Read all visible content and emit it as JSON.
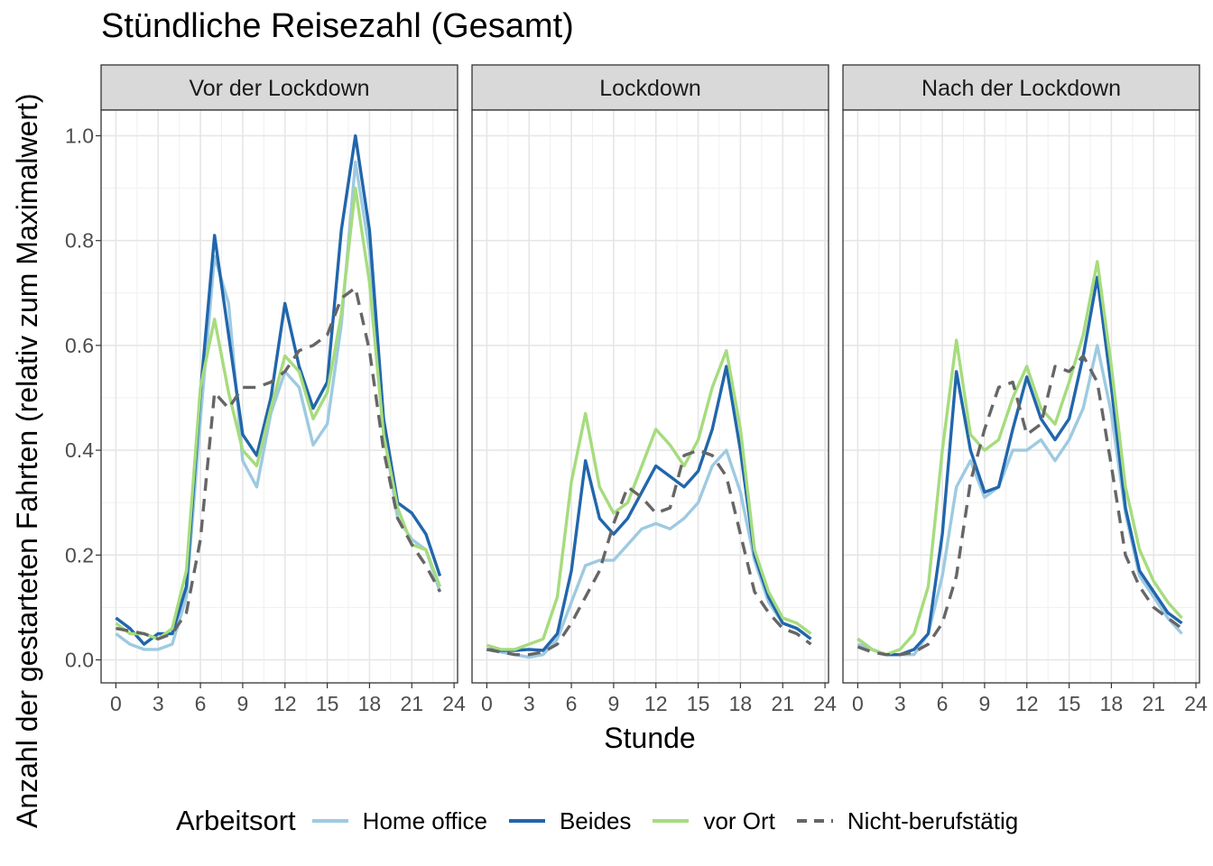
{
  "chart_data": {
    "type": "line",
    "title": "Stündliche Reisezahl (Gesamt)",
    "xlabel": "Stunde",
    "ylabel": "Anzahl der gestarteten Fahrten (relativ zum Maximalwert)",
    "xlim": [
      0,
      24
    ],
    "ylim": [
      0,
      1.0
    ],
    "x_ticks": [
      0,
      3,
      6,
      9,
      12,
      15,
      18,
      21,
      24
    ],
    "y_ticks": [
      0.0,
      0.2,
      0.4,
      0.6,
      0.8,
      1.0
    ],
    "y_tick_labels": [
      "0.0",
      "0.2",
      "0.4",
      "0.6",
      "0.8",
      "1.0"
    ],
    "grid": true,
    "legend": {
      "title": "Arbeitsort",
      "position": "bottom",
      "entries": [
        "Home office",
        "Beides",
        "vor Ort",
        "Nicht-berufstätig"
      ]
    },
    "series_styles": [
      {
        "name": "Home office",
        "color": "#9ecae1",
        "dash": "solid"
      },
      {
        "name": "Beides",
        "color": "#2166ac",
        "dash": "solid"
      },
      {
        "name": "vor Ort",
        "color": "#a6dc7d",
        "dash": "solid"
      },
      {
        "name": "Nicht-berufstätig",
        "color": "#666666",
        "dash": "dashed"
      }
    ],
    "x": [
      0,
      1,
      2,
      3,
      4,
      5,
      6,
      7,
      8,
      9,
      10,
      11,
      12,
      13,
      14,
      15,
      16,
      17,
      18,
      19,
      20,
      21,
      22,
      23
    ],
    "panels": [
      {
        "title": "Vor der Lockdown",
        "series": [
          {
            "name": "Home office",
            "values": [
              0.05,
              0.03,
              0.02,
              0.02,
              0.03,
              0.12,
              0.46,
              0.77,
              0.68,
              0.38,
              0.33,
              0.47,
              0.55,
              0.52,
              0.41,
              0.45,
              0.64,
              0.95,
              0.78,
              0.44,
              0.27,
              0.23,
              0.21,
              0.13
            ]
          },
          {
            "name": "Beides",
            "values": [
              0.08,
              0.06,
              0.03,
              0.05,
              0.05,
              0.14,
              0.51,
              0.81,
              0.62,
              0.43,
              0.39,
              0.5,
              0.68,
              0.56,
              0.48,
              0.53,
              0.82,
              1.0,
              0.82,
              0.46,
              0.3,
              0.28,
              0.24,
              0.16
            ]
          },
          {
            "name": "vor Ort",
            "values": [
              0.07,
              0.05,
              0.05,
              0.04,
              0.06,
              0.17,
              0.52,
              0.65,
              0.51,
              0.4,
              0.37,
              0.48,
              0.58,
              0.55,
              0.46,
              0.51,
              0.66,
              0.9,
              0.72,
              0.43,
              0.29,
              0.22,
              0.21,
              0.14
            ]
          },
          {
            "name": "Nicht-berufstätig",
            "values": [
              0.06,
              0.055,
              0.05,
              0.04,
              0.05,
              0.09,
              0.23,
              0.51,
              0.48,
              0.52,
              0.52,
              0.53,
              0.55,
              0.59,
              0.6,
              0.62,
              0.69,
              0.71,
              0.59,
              0.4,
              0.27,
              0.22,
              0.18,
              0.13
            ]
          }
        ]
      },
      {
        "title": "Lockdown",
        "series": [
          {
            "name": "Home office",
            "values": [
              0.02,
              0.015,
              0.01,
              0.005,
              0.01,
              0.04,
              0.11,
              0.18,
              0.19,
              0.19,
              0.22,
              0.25,
              0.26,
              0.25,
              0.27,
              0.3,
              0.37,
              0.4,
              0.32,
              0.19,
              0.11,
              0.07,
              0.06,
              0.04
            ]
          },
          {
            "name": "Beides",
            "values": [
              0.02,
              0.018,
              0.018,
              0.02,
              0.018,
              0.05,
              0.17,
              0.38,
              0.27,
              0.24,
              0.27,
              0.32,
              0.37,
              0.35,
              0.33,
              0.36,
              0.44,
              0.56,
              0.4,
              0.2,
              0.12,
              0.07,
              0.06,
              0.04
            ]
          },
          {
            "name": "vor Ort",
            "values": [
              0.028,
              0.02,
              0.02,
              0.03,
              0.04,
              0.12,
              0.34,
              0.47,
              0.33,
              0.28,
              0.3,
              0.37,
              0.44,
              0.41,
              0.37,
              0.42,
              0.52,
              0.59,
              0.44,
              0.21,
              0.13,
              0.08,
              0.07,
              0.05
            ]
          },
          {
            "name": "Nicht-berufstätig",
            "values": [
              0.02,
              0.015,
              0.01,
              0.01,
              0.015,
              0.03,
              0.07,
              0.12,
              0.17,
              0.26,
              0.33,
              0.31,
              0.28,
              0.29,
              0.39,
              0.4,
              0.39,
              0.35,
              0.24,
              0.13,
              0.09,
              0.06,
              0.05,
              0.03
            ]
          }
        ]
      },
      {
        "title": "Nach der Lockdown",
        "series": [
          {
            "name": "Home office",
            "values": [
              0.03,
              0.02,
              0.01,
              0.01,
              0.01,
              0.05,
              0.16,
              0.33,
              0.38,
              0.31,
              0.33,
              0.4,
              0.4,
              0.42,
              0.38,
              0.42,
              0.48,
              0.6,
              0.47,
              0.28,
              0.16,
              0.12,
              0.08,
              0.05
            ]
          },
          {
            "name": "Beides",
            "values": [
              0.04,
              0.02,
              0.01,
              0.01,
              0.02,
              0.05,
              0.24,
              0.55,
              0.4,
              0.32,
              0.33,
              0.44,
              0.54,
              0.46,
              0.42,
              0.46,
              0.58,
              0.73,
              0.52,
              0.29,
              0.17,
              0.13,
              0.09,
              0.07
            ]
          },
          {
            "name": "vor Ort",
            "values": [
              0.04,
              0.02,
              0.01,
              0.02,
              0.05,
              0.14,
              0.4,
              0.61,
              0.43,
              0.4,
              0.42,
              0.5,
              0.56,
              0.48,
              0.45,
              0.53,
              0.62,
              0.76,
              0.56,
              0.33,
              0.21,
              0.15,
              0.11,
              0.08
            ]
          },
          {
            "name": "Nicht-berufstätig",
            "values": [
              0.025,
              0.015,
              0.01,
              0.01,
              0.015,
              0.03,
              0.07,
              0.16,
              0.34,
              0.44,
              0.52,
              0.53,
              0.43,
              0.45,
              0.56,
              0.55,
              0.58,
              0.53,
              0.37,
              0.2,
              0.14,
              0.1,
              0.08,
              0.06
            ]
          }
        ]
      }
    ]
  }
}
